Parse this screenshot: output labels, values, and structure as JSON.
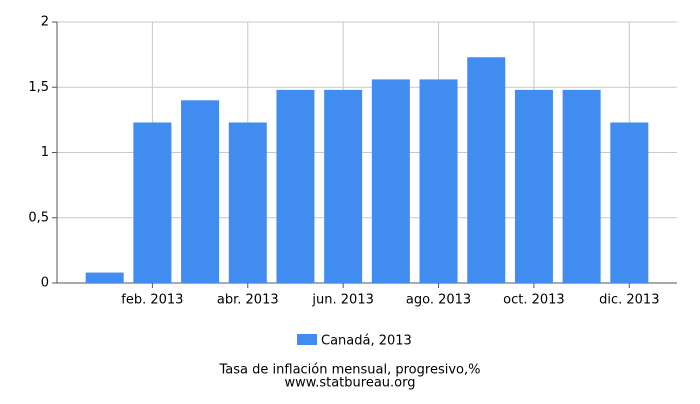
{
  "chart_data": {
    "type": "bar",
    "title": "Tasa de inflación mensual, progresivo,%",
    "source": "www.statbureau.org",
    "categories": [
      null,
      "feb. 2013",
      null,
      "abr. 2013",
      null,
      "jun. 2013",
      null,
      "ago. 2013",
      null,
      "oct. 2013",
      null,
      "dic. 2013"
    ],
    "series": [
      {
        "name": "Canadá, 2013",
        "color": "#418cf0",
        "values": [
          0.08,
          1.23,
          1.4,
          1.23,
          1.48,
          1.48,
          1.56,
          1.56,
          1.73,
          1.48,
          1.48,
          1.23
        ]
      }
    ],
    "ylim": [
      0,
      2
    ],
    "yticks": [
      0,
      {
        "value": 0.5,
        "label": "0,5"
      },
      1,
      {
        "value": 1.5,
        "label": "1,5"
      },
      2
    ],
    "grid": true
  }
}
